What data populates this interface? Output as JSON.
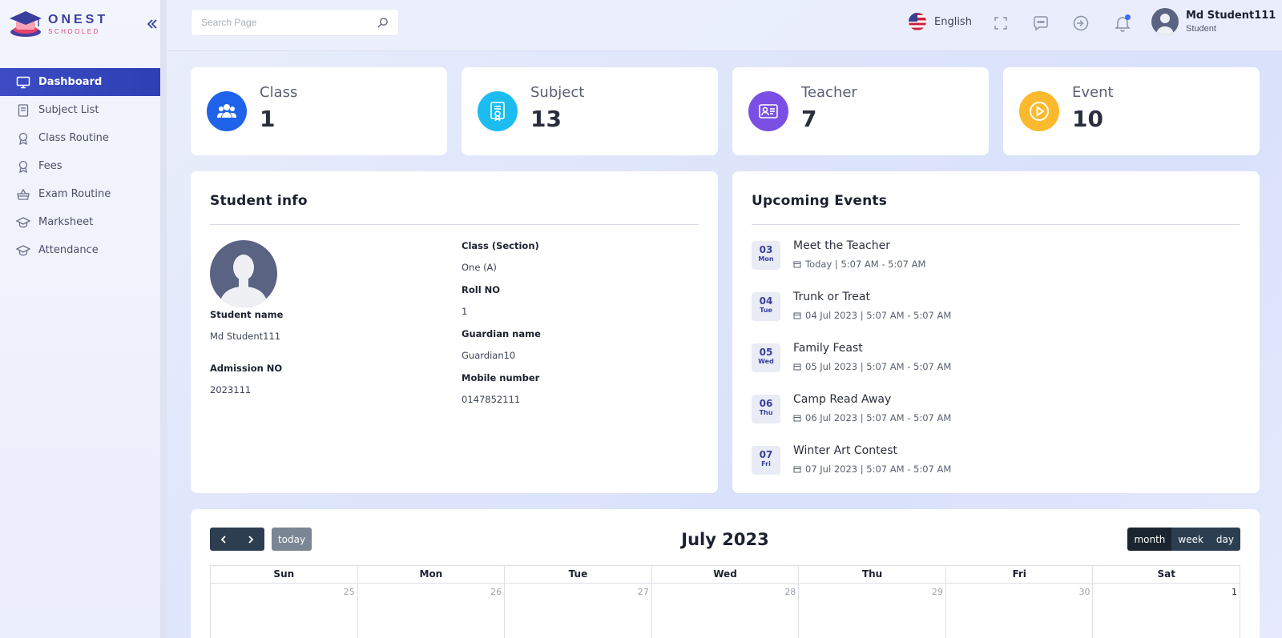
{
  "brand": {
    "line1": "ONEST",
    "line2": "SCHOOLED"
  },
  "sidebar": {
    "items": [
      {
        "label": "Dashboard",
        "icon": "monitor-icon",
        "active": true
      },
      {
        "label": "Subject List",
        "icon": "book-icon"
      },
      {
        "label": "Class Routine",
        "icon": "award-icon"
      },
      {
        "label": "Fees",
        "icon": "award-icon"
      },
      {
        "label": "Exam Routine",
        "icon": "basket-icon"
      },
      {
        "label": "Marksheet",
        "icon": "graduation-cap-icon"
      },
      {
        "label": "Attendance",
        "icon": "graduation-cap-icon"
      }
    ]
  },
  "topbar": {
    "search_placeholder": "Search Page",
    "language": "English",
    "user_name": "Md Student111",
    "user_role": "Student"
  },
  "stats": [
    {
      "label": "Class",
      "value": "1",
      "color": "#1e63e9"
    },
    {
      "label": "Subject",
      "value": "13",
      "color": "#1cbcf0"
    },
    {
      "label": "Teacher",
      "value": "7",
      "color": "#7b4fe3"
    },
    {
      "label": "Event",
      "value": "10",
      "color": "#fdb92d"
    }
  ],
  "student_info": {
    "title": "Student info",
    "student_name_label": "Student name",
    "student_name": "Md Student111",
    "admission_label": "Admission NO",
    "admission_no": "2023111",
    "class_label": "Class (Section)",
    "class_value": "One (A)",
    "roll_label": "Roll NO",
    "roll_value": "1",
    "guardian_label": "Guardian name",
    "guardian_value": "Guardian10",
    "mobile_label": "Mobile number",
    "mobile_value": "0147852111"
  },
  "events": {
    "title": "Upcoming Events",
    "items": [
      {
        "day": "03",
        "weekday": "Mon",
        "title": "Meet the Teacher",
        "time": "Today | 5:07 AM - 5:07 AM"
      },
      {
        "day": "04",
        "weekday": "Tue",
        "title": "Trunk or Treat",
        "time": "04 Jul 2023 | 5:07 AM - 5:07 AM"
      },
      {
        "day": "05",
        "weekday": "Wed",
        "title": "Family Feast",
        "time": "05 Jul 2023 | 5:07 AM - 5:07 AM"
      },
      {
        "day": "06",
        "weekday": "Thu",
        "title": "Camp Read Away",
        "time": "06 Jul 2023 | 5:07 AM - 5:07 AM"
      },
      {
        "day": "07",
        "weekday": "Fri",
        "title": "Winter Art Contest",
        "time": "07 Jul 2023 | 5:07 AM - 5:07 AM"
      }
    ]
  },
  "calendar": {
    "title": "July 2023",
    "today_label": "today",
    "views": [
      "month",
      "week",
      "day"
    ],
    "active_view": "month",
    "weekdays": [
      "Sun",
      "Mon",
      "Tue",
      "Wed",
      "Thu",
      "Fri",
      "Sat"
    ],
    "first_row": [
      "25",
      "26",
      "27",
      "28",
      "29",
      "30",
      "1"
    ]
  }
}
